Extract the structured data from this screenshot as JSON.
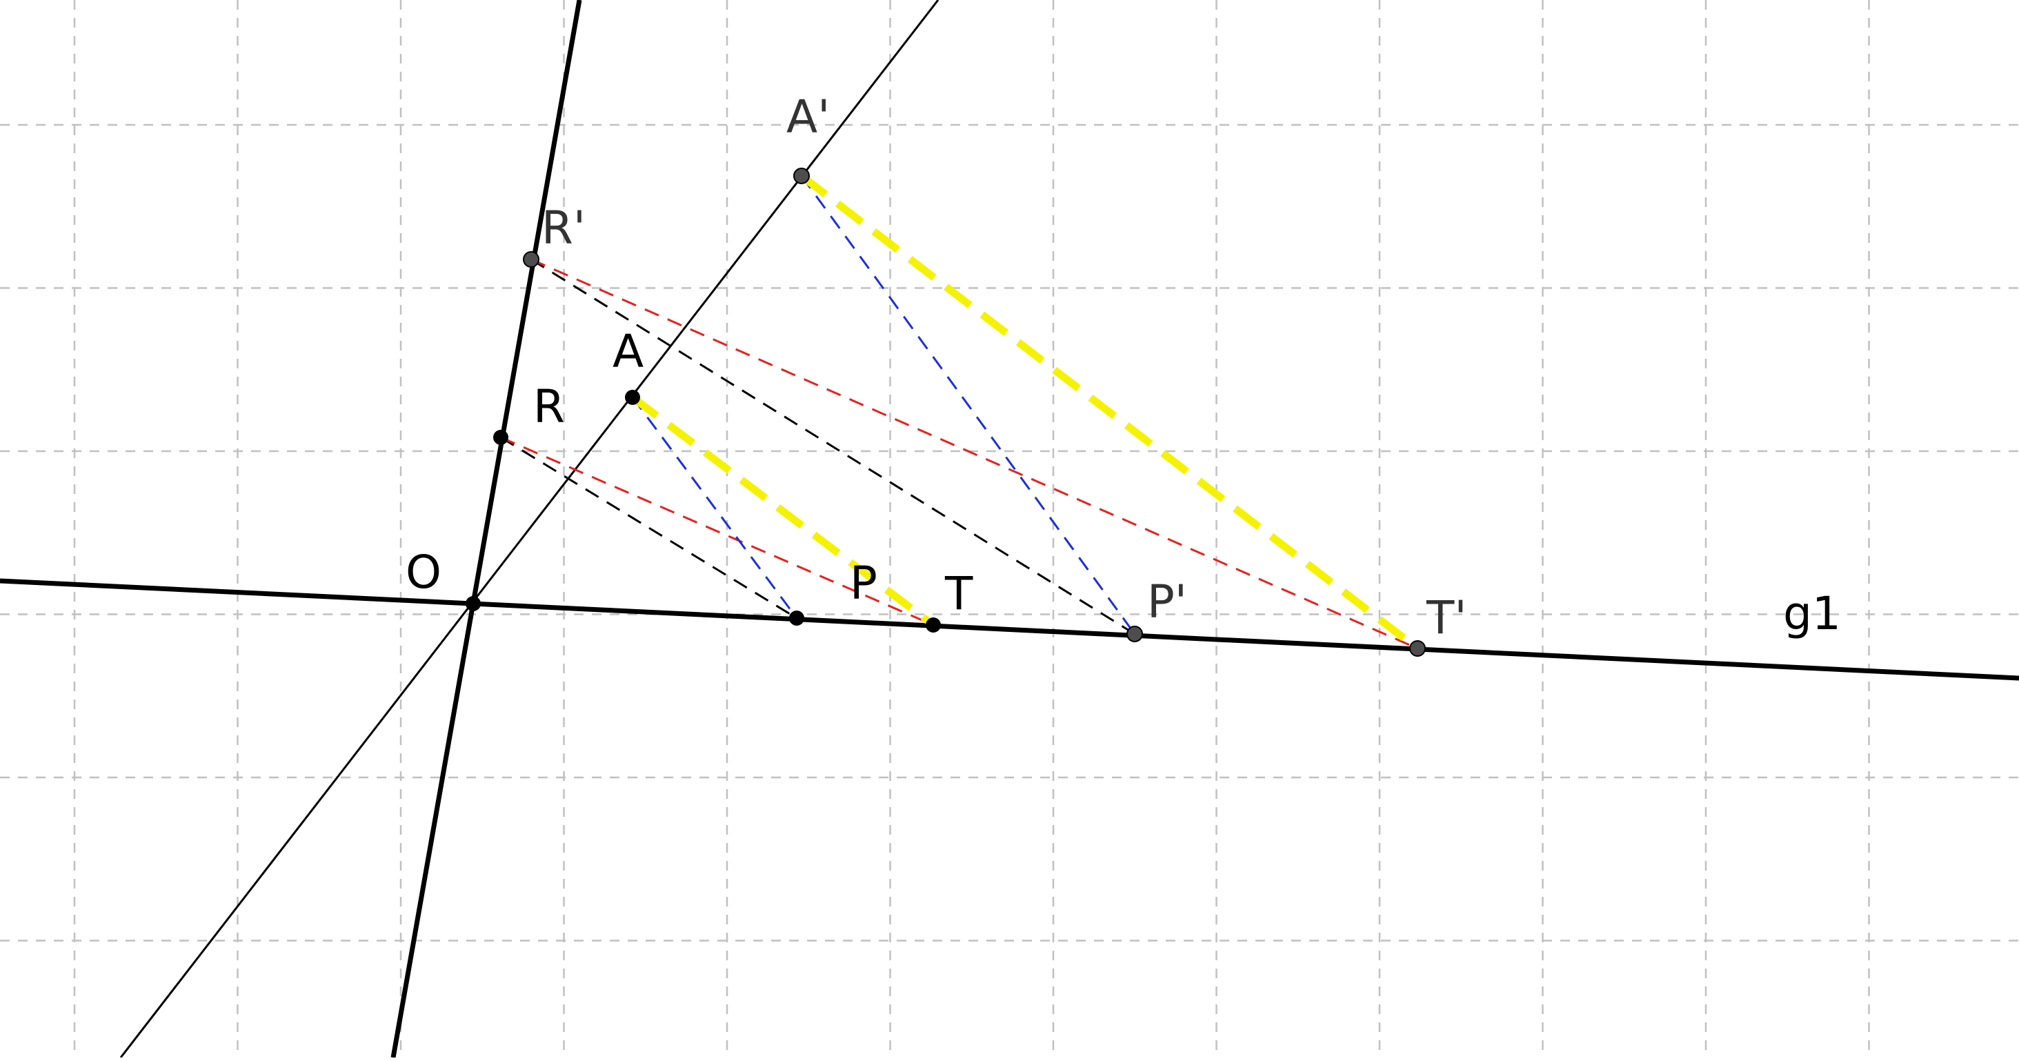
{
  "canvas": {
    "background": "#ffffff",
    "grid": true,
    "grid_color": "#c0c0c0"
  },
  "colors": {
    "line": "#000000",
    "dash_red": "#e8201d",
    "dash_blue": "#1b2fd9",
    "dash_black": "#000000",
    "highlight": "#f5f200",
    "point_fill_black": "#000000",
    "point_fill_gray": "#4d4d4d",
    "label_primed": "#333333"
  },
  "labels": {
    "O": "O",
    "R": "R",
    "R_prime": "R'",
    "A": "A",
    "A_prime": "A'",
    "P": "P",
    "P_prime": "P'",
    "T": "T",
    "T_prime": "T'",
    "line_g1": "g1"
  }
}
